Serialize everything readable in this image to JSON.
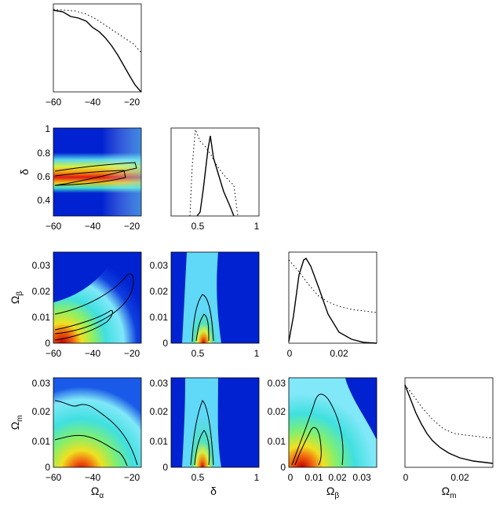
{
  "chart_data": [
    {
      "type": "line",
      "panel": "marginal-alpha",
      "xticks": [
        "−60",
        "−40",
        "−20"
      ],
      "xlim": [
        -60,
        -15
      ],
      "ylim": [
        0,
        1
      ],
      "series": [
        {
          "style": "solid",
          "x": [
            -60,
            -57,
            -54,
            -51,
            -48,
            -45,
            -42,
            -39,
            -36,
            -33,
            -30,
            -27,
            -24,
            -21,
            -18,
            -15
          ],
          "y": [
            0.98,
            0.97,
            0.94,
            0.92,
            0.9,
            0.85,
            0.82,
            0.78,
            0.72,
            0.64,
            0.56,
            0.46,
            0.34,
            0.22,
            0.1,
            0.03
          ]
        },
        {
          "style": "dotted",
          "x": [
            -60,
            -55,
            -50,
            -45,
            -40,
            -35,
            -30,
            -25,
            -20,
            -15
          ],
          "y": [
            1.0,
            1.0,
            0.99,
            0.97,
            0.95,
            0.9,
            0.83,
            0.74,
            0.62,
            0.48
          ]
        }
      ]
    },
    {
      "type": "heatmap",
      "panel": "delta-vs-alpha",
      "ylabel": "δ",
      "xticks": [
        "−60",
        "−40",
        "−20"
      ],
      "yticks": [
        "0.4",
        "0.6",
        "0.8",
        "1"
      ],
      "xlim": [
        -60,
        -15
      ],
      "ylim": [
        0.25,
        1
      ]
    },
    {
      "type": "line",
      "panel": "marginal-delta",
      "xticks": [
        "0.5",
        "1"
      ],
      "xlim": [
        0.25,
        1
      ],
      "ylim": [
        0,
        1
      ],
      "series": [
        {
          "style": "solid",
          "x": [
            0.45,
            0.5,
            0.54,
            0.58,
            0.61,
            0.64,
            0.68,
            0.72,
            0.78,
            0.82
          ],
          "y": [
            0,
            0.05,
            0.3,
            0.82,
            0.93,
            0.72,
            0.45,
            0.2,
            0.05,
            0
          ]
        },
        {
          "style": "dotted",
          "x": [
            0.42,
            0.45,
            0.48,
            0.52,
            0.56,
            0.6,
            0.66,
            0.72,
            0.78,
            0.82
          ],
          "y": [
            0,
            0.6,
            0.98,
            0.88,
            0.8,
            0.7,
            0.55,
            0.45,
            0.3,
            0
          ]
        }
      ]
    },
    {
      "type": "heatmap",
      "panel": "beta-vs-alpha",
      "ylabel": "Ω",
      "ylabel_sub": "β",
      "xticks": [
        "−60",
        "−40",
        "−20"
      ],
      "yticks": [
        "0",
        "0.01",
        "0.02",
        "0.03"
      ],
      "xlim": [
        -60,
        -15
      ],
      "ylim": [
        0,
        0.035
      ]
    },
    {
      "type": "heatmap",
      "panel": "beta-vs-delta",
      "xticks": [
        "0.5",
        "1"
      ],
      "yticks": [
        "0",
        "0.01",
        "0.02",
        "0.03"
      ],
      "xlim": [
        0.25,
        1
      ],
      "ylim": [
        0,
        0.035
      ]
    },
    {
      "type": "line",
      "panel": "marginal-beta",
      "xticks": [
        "0",
        "0.02"
      ],
      "xlim": [
        0,
        0.035
      ],
      "ylim": [
        0,
        1
      ],
      "series": [
        {
          "style": "solid",
          "x": [
            0,
            0.002,
            0.004,
            0.006,
            0.007,
            0.009,
            0.012,
            0.016,
            0.02,
            0.025,
            0.03,
            0.035
          ],
          "y": [
            0.02,
            0.3,
            0.75,
            0.98,
            1.0,
            0.88,
            0.6,
            0.3,
            0.12,
            0.04,
            0.01,
            0
          ]
        },
        {
          "style": "dotted",
          "x": [
            0,
            0.004,
            0.008,
            0.012,
            0.016,
            0.02,
            0.025,
            0.03,
            0.035
          ],
          "y": [
            0.92,
            0.8,
            0.65,
            0.52,
            0.45,
            0.4,
            0.37,
            0.35,
            0.33
          ]
        }
      ]
    },
    {
      "type": "heatmap",
      "panel": "m-vs-alpha",
      "ylabel": "Ω",
      "ylabel_sub": "m",
      "xlabel": "Ω",
      "xlabel_sub": "α",
      "xticks": [
        "−60",
        "−40",
        "−20"
      ],
      "yticks": [
        "0",
        "0.01",
        "0.02",
        "0.03"
      ],
      "xlim": [
        -60,
        -15
      ],
      "ylim": [
        0,
        0.032
      ]
    },
    {
      "type": "heatmap",
      "panel": "m-vs-delta",
      "xlabel": "δ",
      "xticks": [
        "0.5",
        "1"
      ],
      "yticks": [
        "0",
        "0.01",
        "0.02",
        "0.03"
      ],
      "xlim": [
        0.25,
        1
      ],
      "ylim": [
        0,
        0.032
      ]
    },
    {
      "type": "heatmap",
      "panel": "m-vs-beta",
      "xlabel": "Ω",
      "xlabel_sub": "β",
      "xticks": [
        "0",
        "0.01",
        "0.02",
        "0.03"
      ],
      "yticks": [
        "0",
        "0.01",
        "0.02",
        "0.03"
      ],
      "xlim": [
        0,
        0.035
      ],
      "ylim": [
        0,
        0.032
      ]
    },
    {
      "type": "line",
      "panel": "marginal-m",
      "xlabel": "Ω",
      "xlabel_sub": "m",
      "xticks": [
        "0",
        "0.02"
      ],
      "xlim": [
        0,
        0.032
      ],
      "ylim": [
        0,
        1
      ],
      "series": [
        {
          "style": "solid",
          "x": [
            0,
            0.002,
            0.004,
            0.006,
            0.008,
            0.01,
            0.013,
            0.016,
            0.02,
            0.025,
            0.032
          ],
          "y": [
            0.95,
            0.78,
            0.62,
            0.49,
            0.38,
            0.3,
            0.22,
            0.16,
            0.11,
            0.07,
            0.04
          ]
        },
        {
          "style": "dotted",
          "x": [
            0,
            0.003,
            0.006,
            0.01,
            0.014,
            0.018,
            0.022,
            0.027,
            0.032
          ],
          "y": [
            0.95,
            0.82,
            0.7,
            0.56,
            0.45,
            0.4,
            0.38,
            0.36,
            0.35
          ]
        }
      ]
    }
  ]
}
